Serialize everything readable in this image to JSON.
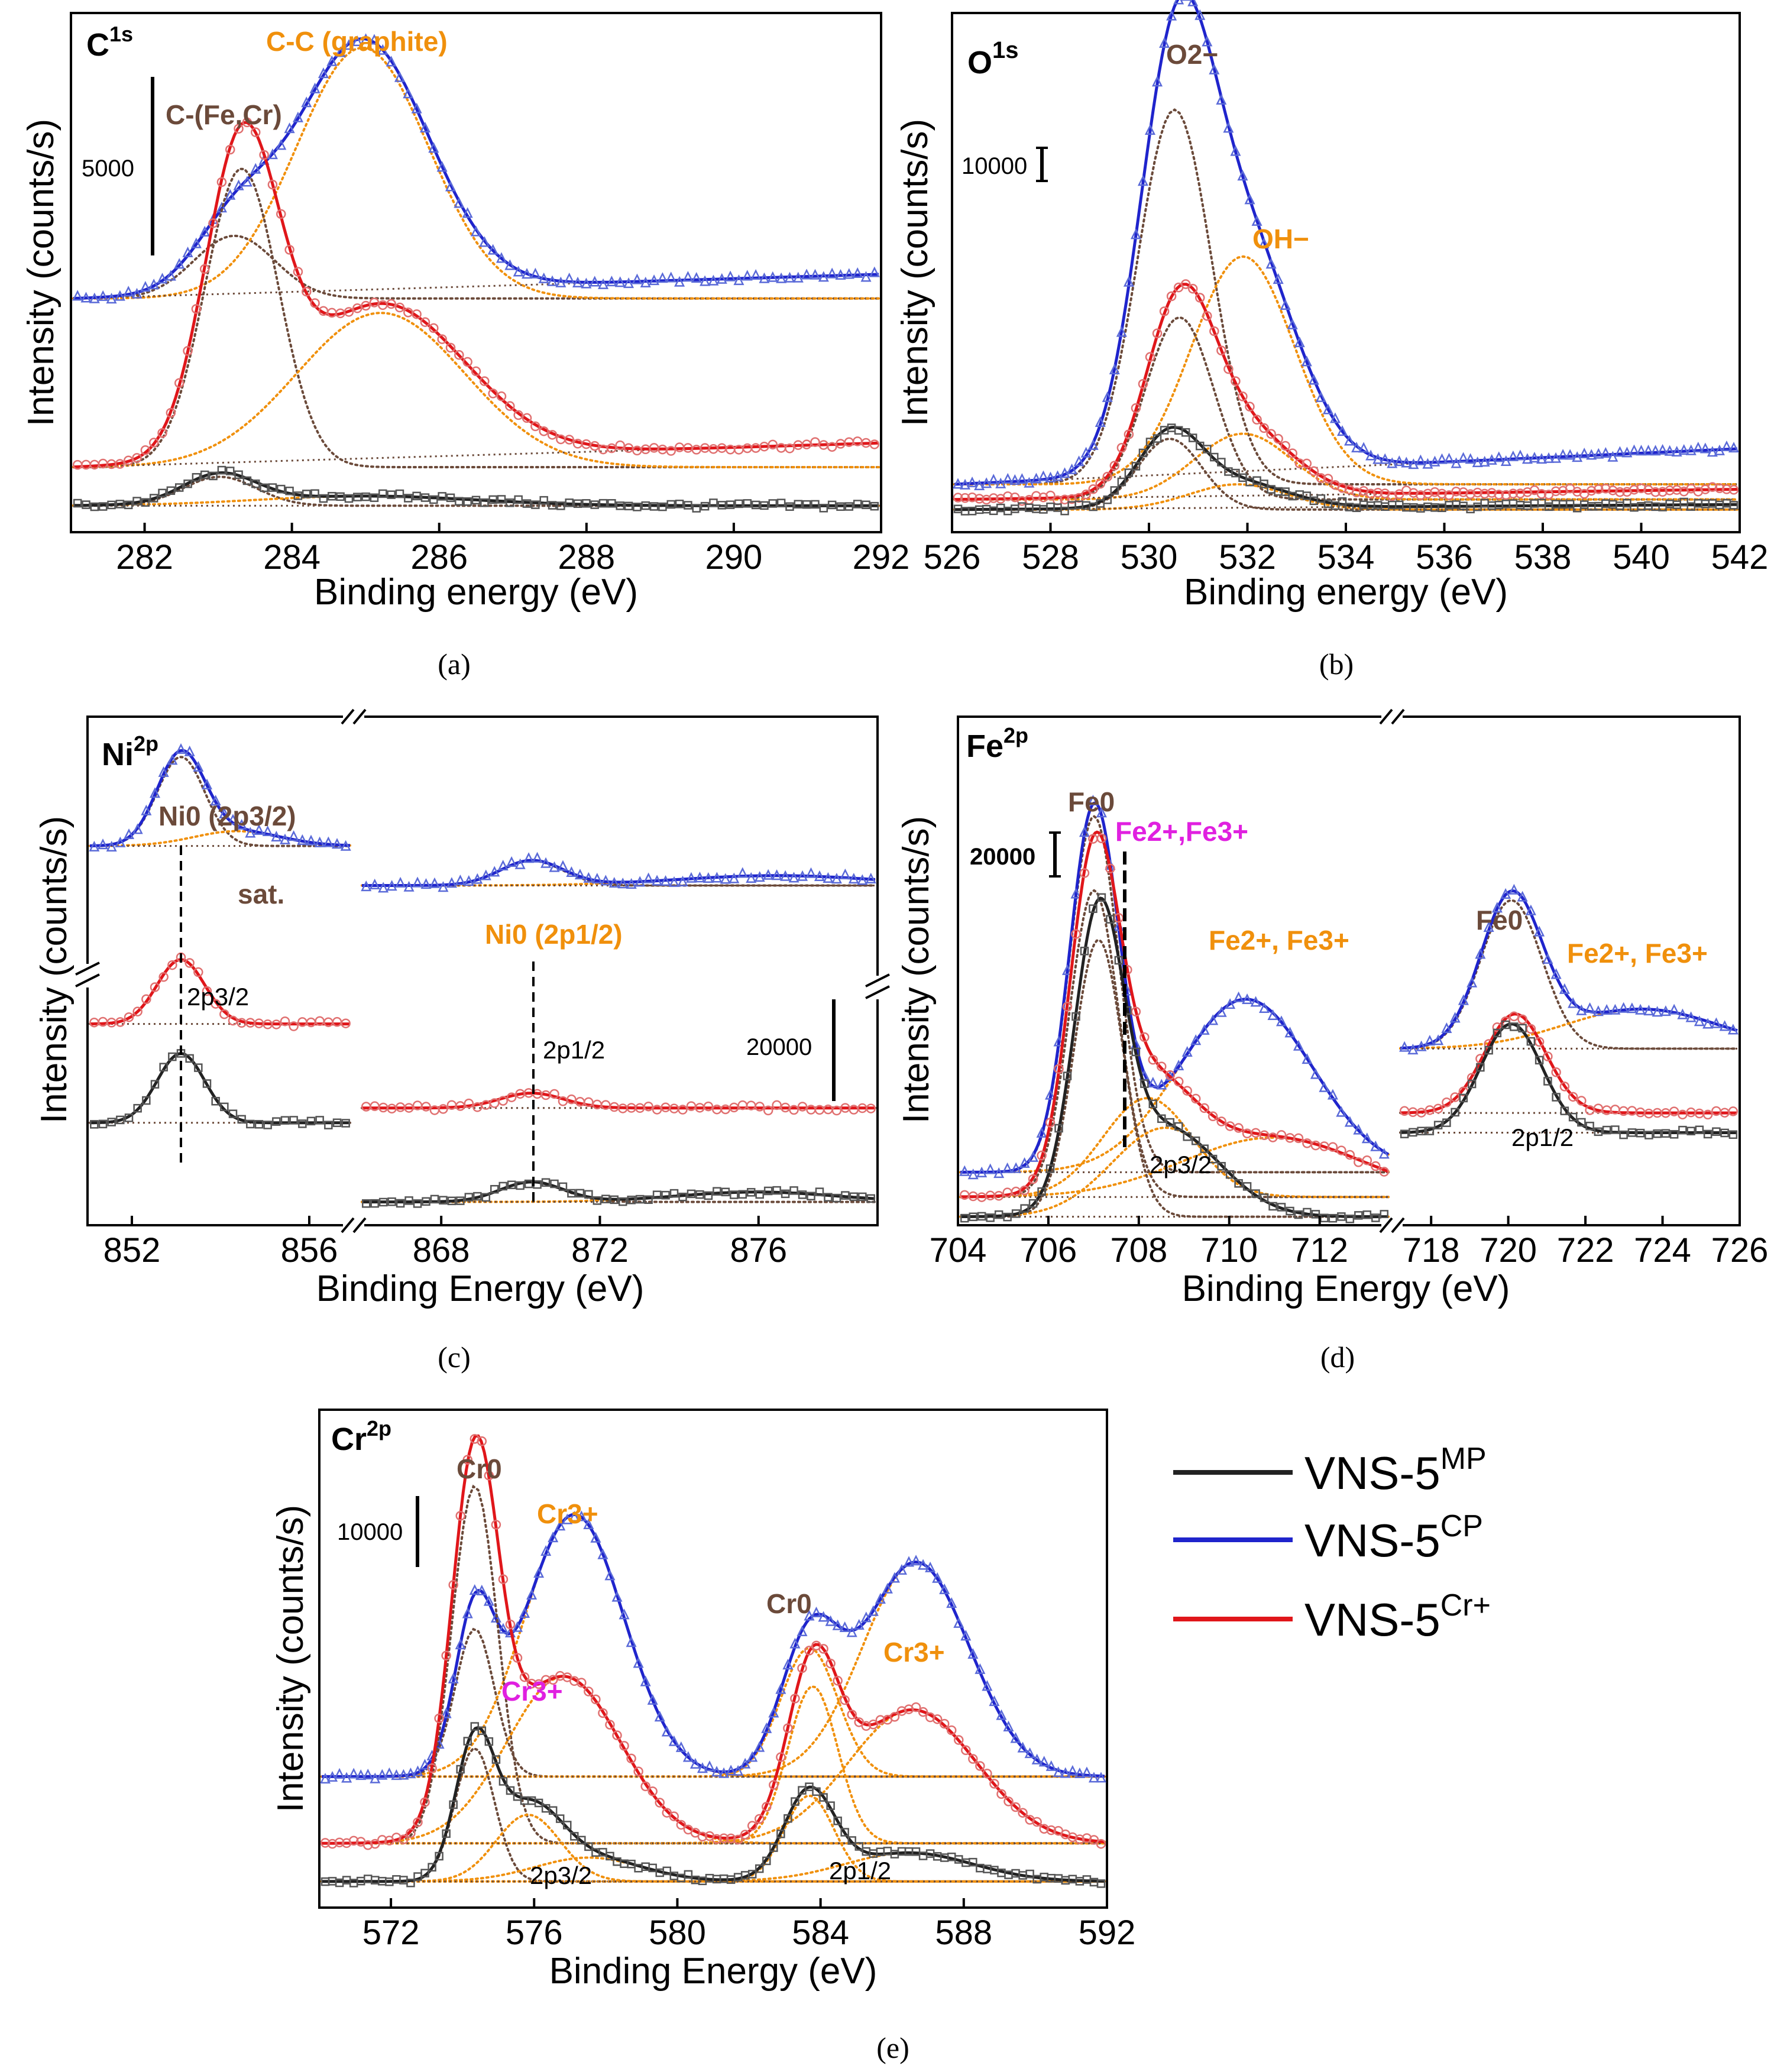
{
  "colors": {
    "mp": "#222222",
    "cp": "#1f24cc",
    "cr": "#e0161a",
    "orange": "#f0900c",
    "brown": "#6b4a3a",
    "magenta": "#e020e0",
    "mp_marker": "#555555",
    "cp_marker": "#5a6ad8",
    "cr_marker": "#e07070"
  },
  "legend": [
    {
      "base": "VNS-5",
      "sup": "MP",
      "color": "#222222"
    },
    {
      "base": "VNS-5",
      "sup": "CP",
      "color": "#1f24cc"
    },
    {
      "base": "VNS-5",
      "sup": "Cr+",
      "color": "#e0161a"
    }
  ],
  "chart_data": [
    {
      "id": "a",
      "type": "line",
      "caption": "(a)",
      "panel_label": {
        "base": "C",
        "sup": "1s"
      },
      "xlabel": "Binding energy (eV)",
      "ylabel": "Intensity (counts/s)",
      "xlim": [
        281,
        292
      ],
      "xticks": [
        282,
        284,
        286,
        288,
        290,
        292
      ],
      "scale_bar": {
        "label": "5000",
        "value": 5000
      },
      "annotations": [
        {
          "text": "C-C (graphite)",
          "color": "orange"
        },
        {
          "text": "C-(Fe,Cr)",
          "color": "brown"
        }
      ],
      "series": [
        {
          "name": "VNS-5CP",
          "baseline": 0.48,
          "peaks": [
            [
              283.2,
              0.13,
              0.55
            ],
            [
              284.95,
              0.52,
              0.9
            ]
          ],
          "tail": 0.05
        },
        {
          "name": "VNS-5Cr+",
          "baseline": 0.13,
          "peaks": [
            [
              283.3,
              0.62,
              0.5
            ],
            [
              285.2,
              0.32,
              1.15
            ]
          ],
          "tail": 0.05
        },
        {
          "name": "VNS-5MP",
          "baseline": 0.05,
          "peaks": [
            [
              283.0,
              0.06,
              0.5
            ],
            [
              285.0,
              0.02,
              1.5
            ]
          ],
          "tail": 0.0
        }
      ]
    },
    {
      "id": "b",
      "type": "line",
      "caption": "(b)",
      "panel_label": {
        "base": "O",
        "sup": "1s"
      },
      "xlabel": "Binding energy (eV)",
      "ylabel": "Intensity (counts/s)",
      "xlim": [
        526,
        542
      ],
      "xticks": [
        526,
        528,
        530,
        532,
        534,
        536,
        538,
        540,
        542
      ],
      "scale_bar": {
        "label": "10000",
        "value": 10000
      },
      "annotations": [
        {
          "text": "O2−",
          "color": "brown"
        },
        {
          "text": "OH−",
          "color": "orange"
        }
      ],
      "series": [
        {
          "name": "VNS-5CP",
          "baseline": 0.09,
          "peaks": [
            [
              530.5,
              0.74,
              0.75
            ],
            [
              531.9,
              0.45,
              1.05
            ]
          ],
          "tail": 0.07
        },
        {
          "name": "VNS-5Cr+",
          "baseline": 0.06,
          "peaks": [
            [
              530.6,
              0.36,
              0.7
            ],
            [
              531.9,
              0.13,
              1.0
            ]
          ],
          "tail": 0.02
        },
        {
          "name": "VNS-5MP",
          "baseline": 0.04,
          "peaks": [
            [
              530.4,
              0.14,
              0.65
            ],
            [
              531.8,
              0.05,
              1.0
            ]
          ],
          "tail": 0.01
        }
      ]
    },
    {
      "id": "c",
      "type": "line",
      "caption": "(c)",
      "panel_label": {
        "base": "Ni",
        "sup": "2p"
      },
      "xlabel": "Binding Energy (eV)",
      "ylabel": "Intensity (counts/s)",
      "xlim_left": [
        851,
        857
      ],
      "xlim_right": [
        866,
        879
      ],
      "xticks_left": [
        852,
        856
      ],
      "xticks_right": [
        868,
        872,
        876
      ],
      "scale_bar": {
        "label": "20000",
        "value": 20000
      },
      "annotations": [
        {
          "text": "Ni0 (2p3/2)",
          "color": "brown"
        },
        {
          "text": "sat.",
          "color": "brown"
        },
        {
          "text": "Ni0 (2p1/2)",
          "color": "orange"
        },
        {
          "text": "2p3/2",
          "color": "black"
        },
        {
          "text": "2p1/2",
          "color": "black"
        }
      ],
      "series": [
        {
          "name": "VNS-5CP",
          "left": {
            "baseline": 0.76,
            "peaks": [
              [
                853.1,
                0.18,
                0.55
              ],
              [
                854.4,
                0.03,
                1.0
              ]
            ]
          },
          "right": {
            "baseline": 0.68,
            "peaks": [
              [
                870.3,
                0.05,
                0.8
              ],
              [
                876.5,
                0.02,
                2.5
              ]
            ]
          }
        },
        {
          "name": "VNS-5Cr+",
          "left": {
            "baseline": 0.4,
            "peaks": [
              [
                853.1,
                0.13,
                0.55
              ]
            ]
          },
          "right": {
            "baseline": 0.23,
            "peaks": [
              [
                870.3,
                0.03,
                0.8
              ]
            ]
          }
        },
        {
          "name": "VNS-5MP",
          "left": {
            "baseline": 0.2,
            "peaks": [
              [
                853.1,
                0.14,
                0.55
              ]
            ]
          },
          "right": {
            "baseline": 0.04,
            "peaks": [
              [
                870.3,
                0.04,
                0.8
              ],
              [
                876.0,
                0.02,
                2.0
              ]
            ]
          }
        }
      ]
    },
    {
      "id": "d",
      "type": "line",
      "caption": "(d)",
      "panel_label": {
        "base": "Fe",
        "sup": "2p"
      },
      "xlabel": "Binding Energy (eV)",
      "ylabel": "Intensity (counts/s)",
      "xlim_left": [
        704,
        713.6
      ],
      "xlim_right": [
        717.2,
        726
      ],
      "xticks_left": [
        704,
        706,
        708,
        710,
        712
      ],
      "xticks_right": [
        718,
        720,
        722,
        724,
        726
      ],
      "scale_bar": {
        "label": "20000",
        "value": 20000
      },
      "annotations": [
        {
          "text": "Fe0",
          "color": "brown"
        },
        {
          "text": "Fe2+,Fe3+",
          "color": "magenta"
        },
        {
          "text": "Fe2+, Fe3+",
          "color": "orange"
        },
        {
          "text": "2p3/2",
          "color": "black"
        },
        {
          "text": "2p1/2",
          "color": "black"
        }
      ],
      "series": [
        {
          "name": "VNS-5CP",
          "left": {
            "baseline": 0.1,
            "peaks": [
              [
                707.0,
                0.72,
                0.55
              ],
              [
                710.4,
                0.35,
                1.5
              ]
            ]
          },
          "right": {
            "baseline": 0.35,
            "peaks": [
              [
                720.1,
                0.3,
                0.8
              ],
              [
                723.5,
                0.08,
                2.0
              ]
            ]
          }
        },
        {
          "name": "VNS-5Cr+",
          "left": {
            "baseline": 0.05,
            "peaks": [
              [
                707.0,
                0.62,
                0.55
              ],
              [
                708.2,
                0.2,
                1.0
              ],
              [
                711.0,
                0.12,
                2.0
              ]
            ]
          },
          "right": {
            "baseline": 0.22,
            "peaks": [
              [
                720.2,
                0.2,
                0.8
              ]
            ]
          }
        },
        {
          "name": "VNS-5MP",
          "left": {
            "baseline": 0.01,
            "peaks": [
              [
                707.1,
                0.56,
                0.55
              ],
              [
                708.6,
                0.18,
                1.2
              ]
            ]
          },
          "right": {
            "baseline": 0.18,
            "peaks": [
              [
                720.1,
                0.22,
                0.8
              ]
            ]
          }
        }
      ]
    },
    {
      "id": "e",
      "type": "line",
      "caption": "(e)",
      "panel_label": {
        "base": "Cr",
        "sup": "2p"
      },
      "xlabel": "Binding Energy (eV)",
      "ylabel": "Intensity (counts/s)",
      "xlim": [
        570,
        592
      ],
      "xticks": [
        572,
        576,
        580,
        584,
        588,
        592
      ],
      "scale_bar": {
        "label": "10000",
        "value": 10000
      },
      "annotations": [
        {
          "text": "Cr0",
          "color": "brown"
        },
        {
          "text": "Cr3+",
          "color": "orange"
        },
        {
          "text": "Cr3+",
          "color": "magenta"
        },
        {
          "text": "Cr0",
          "color": "brown"
        },
        {
          "text": "Cr3+",
          "color": "orange"
        },
        {
          "text": "2p3/2",
          "color": "black"
        },
        {
          "text": "2p1/2",
          "color": "black"
        }
      ],
      "series": [
        {
          "name": "VNS-5CP",
          "baseline": 0.27,
          "peaks": [
            [
              574.3,
              0.31,
              0.55
            ],
            [
              577.1,
              0.55,
              1.4
            ],
            [
              583.7,
              0.27,
              0.8
            ],
            [
              586.7,
              0.45,
              1.5
            ]
          ],
          "tail": 0.0
        },
        {
          "name": "VNS-5Cr+",
          "baseline": 0.13,
          "peaks": [
            [
              574.3,
              0.75,
              0.65
            ],
            [
              576.8,
              0.35,
              1.6
            ],
            [
              583.8,
              0.33,
              0.7
            ],
            [
              586.6,
              0.28,
              1.8
            ]
          ],
          "tail": 0.0
        },
        {
          "name": "VNS-5MP",
          "baseline": 0.05,
          "peaks": [
            [
              574.3,
              0.28,
              0.55
            ],
            [
              575.8,
              0.14,
              0.9
            ],
            [
              577.5,
              0.05,
              1.5
            ],
            [
              583.7,
              0.18,
              0.7
            ],
            [
              586.5,
              0.06,
              1.8
            ]
          ],
          "tail": 0.0
        }
      ]
    }
  ]
}
